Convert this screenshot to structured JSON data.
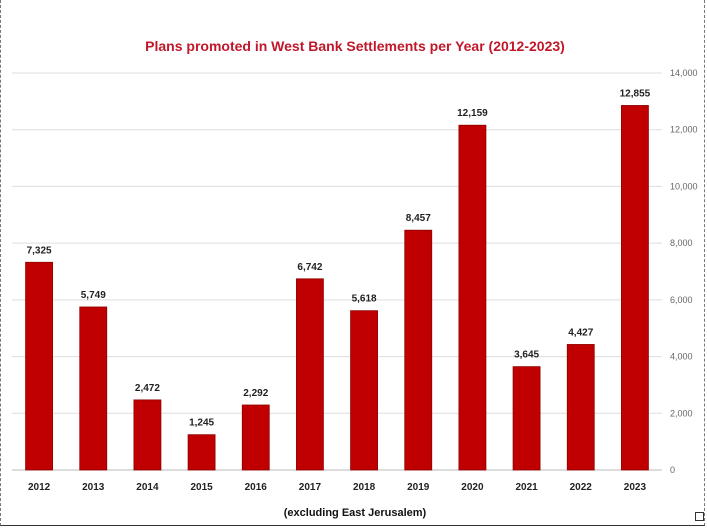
{
  "chart_data": {
    "type": "bar",
    "title": "Plans promoted in West Bank Settlements per Year (2012-2023)",
    "categories": [
      "2012",
      "2013",
      "2014",
      "2015",
      "2016",
      "2017",
      "2018",
      "2019",
      "2020",
      "2021",
      "2022",
      "2023"
    ],
    "values": [
      7325,
      5749,
      2472,
      1245,
      2292,
      6742,
      5618,
      8457,
      12159,
      3645,
      4427,
      12855
    ],
    "value_labels": [
      "7,325",
      "5,749",
      "2,472",
      "1,245",
      "2,292",
      "6,742",
      "5,618",
      "8,457",
      "12,159",
      "3,645",
      "4,427",
      "12,855"
    ],
    "y_ticks": [
      0,
      2000,
      4000,
      6000,
      8000,
      10000,
      12000,
      14000
    ],
    "y_tick_labels": [
      "0",
      "2,000",
      "4,000",
      "6,000",
      "8,000",
      "10,000",
      "12,000",
      "14,000"
    ],
    "ylim": [
      0,
      14000
    ],
    "y_axis_side": "right",
    "grid": true,
    "xlabel": "",
    "ylabel": "",
    "note": "(excluding East Jerusalem)",
    "colors": {
      "bar": "#c00000",
      "bar_edge": "#8e0000",
      "title": "#c0182a",
      "grid": "#dddddd"
    }
  }
}
